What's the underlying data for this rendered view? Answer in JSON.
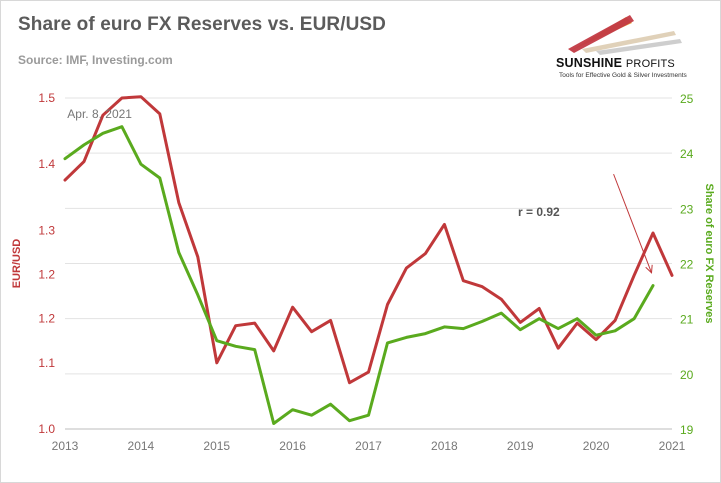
{
  "header": {
    "title": "Share of euro FX Reserves vs. EUR/USD",
    "source": "Source: IMF, Investing.com"
  },
  "logo": {
    "name_bold": "SUNSHINE",
    "name_light": "PROFITS",
    "tagline": "Tools for Effective Gold & Silver Investments"
  },
  "colors": {
    "eurusd": "#c0383a",
    "reserves": "#5aaa1e",
    "axis_left": "#c0383a",
    "axis_right": "#5aaa1e",
    "grid": "#e3e3e3",
    "tick_text": "#777777"
  },
  "chart_data": {
    "type": "line",
    "x_ticks": [
      "2013",
      "2014",
      "2015",
      "2016",
      "2017",
      "2018",
      "2019",
      "2020",
      "2021"
    ],
    "xlim": [
      2013,
      2021
    ],
    "left_axis": {
      "label": "EUR/USD",
      "ylim": [
        1.0,
        1.5
      ],
      "ticks": [
        "1.0",
        "1.1",
        "1.2",
        "1.2",
        "1.3",
        "1.4",
        "1.5"
      ],
      "tick_values": [
        1.0,
        1.1,
        1.1667,
        1.2333,
        1.3,
        1.4,
        1.5
      ]
    },
    "right_axis": {
      "label": "Share of euro FX Reserves",
      "ylim": [
        19,
        25
      ],
      "ticks": [
        "19",
        "20",
        "21",
        "22",
        "23",
        "24",
        "25"
      ]
    },
    "series": [
      {
        "name": "EUR/USD",
        "axis": "left",
        "x": [
          2013.0,
          2013.25,
          2013.5,
          2013.75,
          2014.0,
          2014.25,
          2014.5,
          2014.75,
          2015.0,
          2015.25,
          2015.5,
          2015.75,
          2016.0,
          2016.25,
          2016.5,
          2016.75,
          2017.0,
          2017.25,
          2017.5,
          2017.75,
          2018.0,
          2018.25,
          2018.5,
          2018.75,
          2019.0,
          2019.25,
          2019.5,
          2019.75,
          2020.0,
          2020.25,
          2020.5,
          2020.75,
          2021.0
        ],
        "y": [
          1.376,
          1.404,
          1.474,
          1.5,
          1.502,
          1.476,
          1.342,
          1.26,
          1.1,
          1.156,
          1.16,
          1.118,
          1.184,
          1.147,
          1.164,
          1.07,
          1.086,
          1.188,
          1.243,
          1.265,
          1.309,
          1.224,
          1.215,
          1.196,
          1.161,
          1.182,
          1.122,
          1.16,
          1.135,
          1.164,
          1.232,
          1.296,
          1.232
        ]
      },
      {
        "name": "Share of euro FX Reserves",
        "axis": "right",
        "x": [
          2013.0,
          2013.25,
          2013.5,
          2013.75,
          2014.0,
          2014.25,
          2014.5,
          2014.75,
          2015.0,
          2015.25,
          2015.5,
          2015.75,
          2016.0,
          2016.25,
          2016.5,
          2016.75,
          2017.0,
          2017.25,
          2017.5,
          2017.75,
          2018.0,
          2018.25,
          2018.5,
          2018.75,
          2019.0,
          2019.25,
          2019.5,
          2019.75,
          2020.0,
          2020.25,
          2020.5,
          2020.75
        ],
        "y": [
          23.9,
          24.15,
          24.36,
          24.48,
          23.8,
          23.55,
          22.2,
          21.43,
          20.6,
          20.5,
          20.44,
          19.1,
          19.35,
          19.25,
          19.45,
          19.15,
          19.25,
          20.56,
          20.66,
          20.73,
          20.85,
          20.82,
          20.95,
          21.1,
          20.8,
          21.0,
          20.82,
          21.0,
          20.7,
          20.78,
          21.0,
          21.6
        ]
      }
    ],
    "annotations": [
      {
        "text": "Apr. 8, 2021",
        "x": 2013.03,
        "y_left": 1.47
      },
      {
        "text": "r = 0.92",
        "x": 2018.97,
        "y_left": 1.322
      }
    ],
    "arrow": {
      "from": [
        2020.23,
        1.385
      ],
      "to": [
        2020.73,
        1.236
      ]
    },
    "grid": true
  }
}
